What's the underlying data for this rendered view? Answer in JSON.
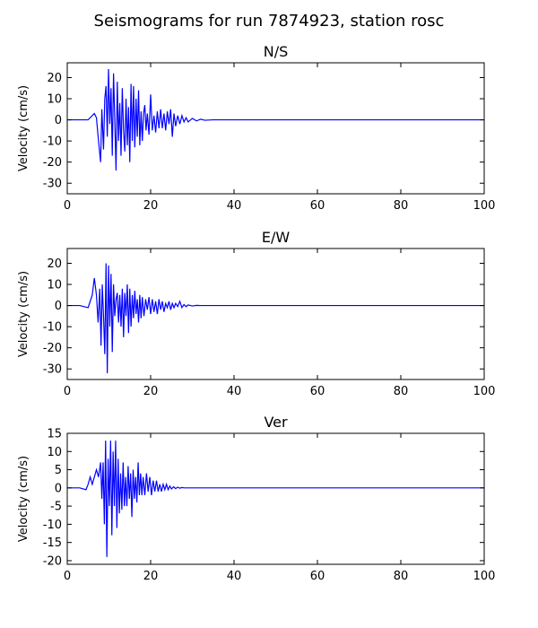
{
  "figure": {
    "title": "Seismograms for run 7874923, station rosc"
  },
  "chart_data": [
    {
      "type": "line",
      "title": "N/S",
      "xlabel": "",
      "ylabel": "Velocity (cm/s)",
      "xlim": [
        0,
        100
      ],
      "ylim": [
        -35,
        27
      ],
      "xticks": [
        0,
        20,
        40,
        60,
        80,
        100
      ],
      "yticks": [
        -30,
        -20,
        -10,
        0,
        10,
        20
      ],
      "grid": false,
      "color": "#0000ff",
      "x": [
        0,
        3,
        5,
        6,
        6.5,
        7,
        7.5,
        8,
        8.3,
        8.7,
        9,
        9.3,
        9.6,
        9.9,
        10.2,
        10.5,
        10.8,
        11.1,
        11.4,
        11.7,
        12,
        12.3,
        12.6,
        12.9,
        13.2,
        13.5,
        13.8,
        14.1,
        14.4,
        14.7,
        15,
        15.3,
        15.6,
        15.9,
        16.2,
        16.5,
        16.8,
        17.1,
        17.4,
        17.7,
        18,
        18.3,
        18.6,
        18.9,
        19.2,
        19.6,
        20,
        20.4,
        20.8,
        21.2,
        21.6,
        22,
        22.4,
        22.8,
        23.2,
        23.6,
        24,
        24.4,
        24.8,
        25.2,
        25.6,
        26,
        26.5,
        27,
        27.5,
        28,
        28.5,
        29,
        30,
        31,
        32,
        33,
        35,
        40,
        60,
        80,
        100
      ],
      "y": [
        0,
        0,
        0,
        2,
        3,
        1,
        -10,
        -20,
        5,
        -14,
        10,
        16,
        -8,
        24,
        -2,
        15,
        -17,
        22,
        0,
        -24,
        18,
        -10,
        8,
        -17,
        15,
        -5,
        -15,
        10,
        -12,
        6,
        -20,
        17,
        -10,
        16,
        -13,
        10,
        -8,
        14,
        -12,
        4,
        -10,
        3,
        7,
        -5,
        3,
        -7,
        12,
        -5,
        2,
        -6,
        4,
        -4,
        5,
        -4,
        3,
        -5,
        4,
        -2,
        5,
        -8,
        3,
        -3,
        2,
        -2,
        2,
        -1,
        1,
        -1,
        0.7,
        -0.5,
        0.3,
        -0.2,
        0,
        0,
        0,
        0,
        0
      ]
    },
    {
      "type": "line",
      "title": "E/W",
      "xlabel": "",
      "ylabel": "Velocity (cm/s)",
      "xlim": [
        0,
        100
      ],
      "ylim": [
        -35,
        27
      ],
      "xticks": [
        0,
        20,
        40,
        60,
        80,
        100
      ],
      "yticks": [
        -30,
        -20,
        -10,
        0,
        10,
        20
      ],
      "grid": false,
      "color": "#0000ff",
      "x": [
        0,
        3,
        5,
        6,
        6.5,
        7,
        7.4,
        7.8,
        8.1,
        8.4,
        8.7,
        9,
        9.3,
        9.6,
        9.9,
        10.2,
        10.5,
        10.8,
        11.1,
        11.4,
        11.7,
        12,
        12.3,
        12.6,
        12.9,
        13.2,
        13.5,
        13.8,
        14.1,
        14.4,
        14.7,
        15,
        15.3,
        15.6,
        15.9,
        16.2,
        16.5,
        16.8,
        17.1,
        17.4,
        17.7,
        18,
        18.4,
        18.8,
        19.2,
        19.6,
        20,
        20.4,
        20.8,
        21.2,
        21.6,
        22,
        22.4,
        22.8,
        23.2,
        23.6,
        24,
        24.4,
        24.8,
        25.2,
        25.6,
        26,
        26.5,
        27,
        27.5,
        28,
        28.5,
        29,
        30,
        31,
        32,
        33,
        35,
        40,
        60,
        80,
        100
      ],
      "y": [
        0,
        0,
        -1,
        5,
        13,
        5,
        -8,
        8,
        -19,
        10,
        -5,
        -23,
        20,
        -32,
        19,
        -10,
        15,
        -22,
        10,
        -5,
        3,
        6,
        -8,
        5,
        -10,
        8,
        -15,
        6,
        -5,
        10,
        -13,
        8,
        -10,
        5,
        -6,
        7,
        -4,
        3,
        -8,
        5,
        -6,
        4,
        -5,
        3,
        -2,
        4,
        -4,
        3,
        -3,
        2,
        -4,
        3,
        -2,
        2,
        -3,
        1,
        -1,
        2,
        -2,
        1,
        -1,
        1,
        -0.5,
        2,
        -1,
        0.5,
        -0.5,
        0.3,
        -0.2,
        0.1,
        0,
        0,
        0,
        0,
        0,
        0,
        0
      ]
    },
    {
      "type": "line",
      "title": "Ver",
      "xlabel": "",
      "ylabel": "Velocity (cm/s)",
      "xlim": [
        0,
        100
      ],
      "ylim": [
        -21,
        15
      ],
      "xticks": [
        0,
        20,
        40,
        60,
        80,
        100
      ],
      "yticks": [
        -20,
        -15,
        -10,
        -5,
        0,
        5,
        10,
        15
      ],
      "grid": false,
      "color": "#0000ff",
      "x": [
        0,
        3,
        4.5,
        5,
        5.5,
        6,
        6.5,
        7,
        7.5,
        8,
        8.3,
        8.6,
        8.9,
        9.2,
        9.5,
        9.8,
        10.1,
        10.4,
        10.7,
        11,
        11.3,
        11.6,
        11.9,
        12.2,
        12.5,
        12.8,
        13.1,
        13.4,
        13.7,
        14,
        14.3,
        14.6,
        14.9,
        15.2,
        15.5,
        15.8,
        16.1,
        16.4,
        16.7,
        17,
        17.3,
        17.6,
        17.9,
        18.2,
        18.6,
        19,
        19.4,
        19.8,
        20.2,
        20.6,
        21,
        21.4,
        21.8,
        22.2,
        22.6,
        23,
        23.4,
        23.8,
        24.2,
        24.6,
        25,
        25.5,
        26,
        26.5,
        27,
        27.5,
        28,
        29,
        30,
        31,
        32,
        33,
        35,
        40,
        60,
        80,
        100
      ],
      "y": [
        0,
        0,
        -0.5,
        1,
        3,
        1,
        3,
        5,
        3,
        7,
        -3,
        7,
        -10,
        13,
        -19,
        8,
        -5,
        13,
        -13,
        10,
        -5,
        13,
        -11,
        8,
        -7,
        4,
        -6,
        7,
        -5,
        3,
        -5,
        6,
        -3,
        4,
        -8,
        5,
        -3,
        3,
        -4,
        7,
        -2,
        4,
        -2,
        3,
        -2,
        4,
        -1,
        3,
        -2,
        2,
        -1,
        2,
        -1,
        1,
        -1,
        1,
        -0.5,
        1,
        -0.5,
        0.5,
        -0.3,
        0.3,
        -0.2,
        0.2,
        -0.1,
        0.1,
        0,
        0,
        0,
        0,
        0,
        0,
        0,
        0,
        0,
        0,
        0
      ]
    }
  ]
}
